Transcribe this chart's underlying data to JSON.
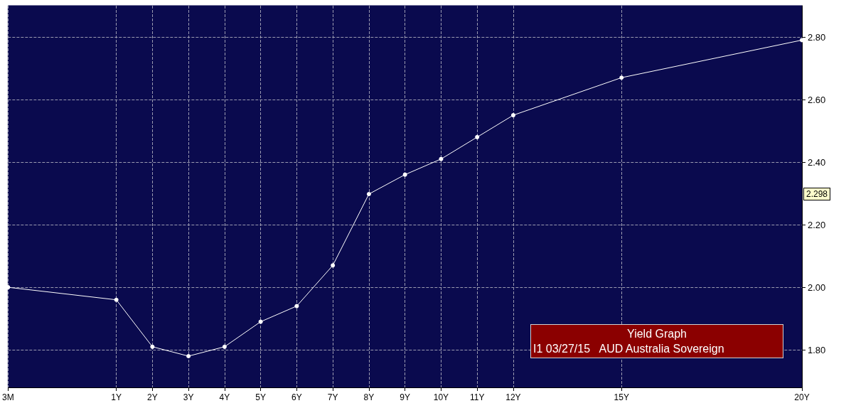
{
  "chart_data": {
    "type": "line",
    "categories": [
      "3M",
      null,
      null,
      "1Y",
      "2Y",
      "3Y",
      "4Y",
      "5Y",
      "6Y",
      "7Y",
      "8Y",
      "9Y",
      "10Y",
      "11Y",
      "12Y",
      null,
      null,
      "15Y",
      null,
      null,
      null,
      null,
      "20Y"
    ],
    "values": [
      2.0,
      null,
      null,
      1.96,
      1.81,
      1.78,
      1.81,
      1.89,
      1.94,
      2.07,
      2.298,
      2.36,
      2.41,
      2.48,
      2.55,
      null,
      null,
      2.67,
      null,
      null,
      null,
      null,
      2.79
    ],
    "color": "#ffffff",
    "marker": "circle",
    "grid": true,
    "ylim": [
      1.68,
      2.9
    ],
    "yticks": [
      {
        "value": 1.8,
        "label": "1.80"
      },
      {
        "value": 2.0,
        "label": "2.00"
      },
      {
        "value": 2.2,
        "label": "2.20"
      },
      {
        "value": 2.4,
        "label": "2.40"
      },
      {
        "value": 2.6,
        "label": "2.60"
      },
      {
        "value": 2.8,
        "label": "2.80"
      }
    ],
    "annotations": [
      {
        "text": "2.298",
        "y": 2.298
      },
      "Yield Graph",
      "I1 03/27/15   AUD Australia Sovereign"
    ]
  }
}
